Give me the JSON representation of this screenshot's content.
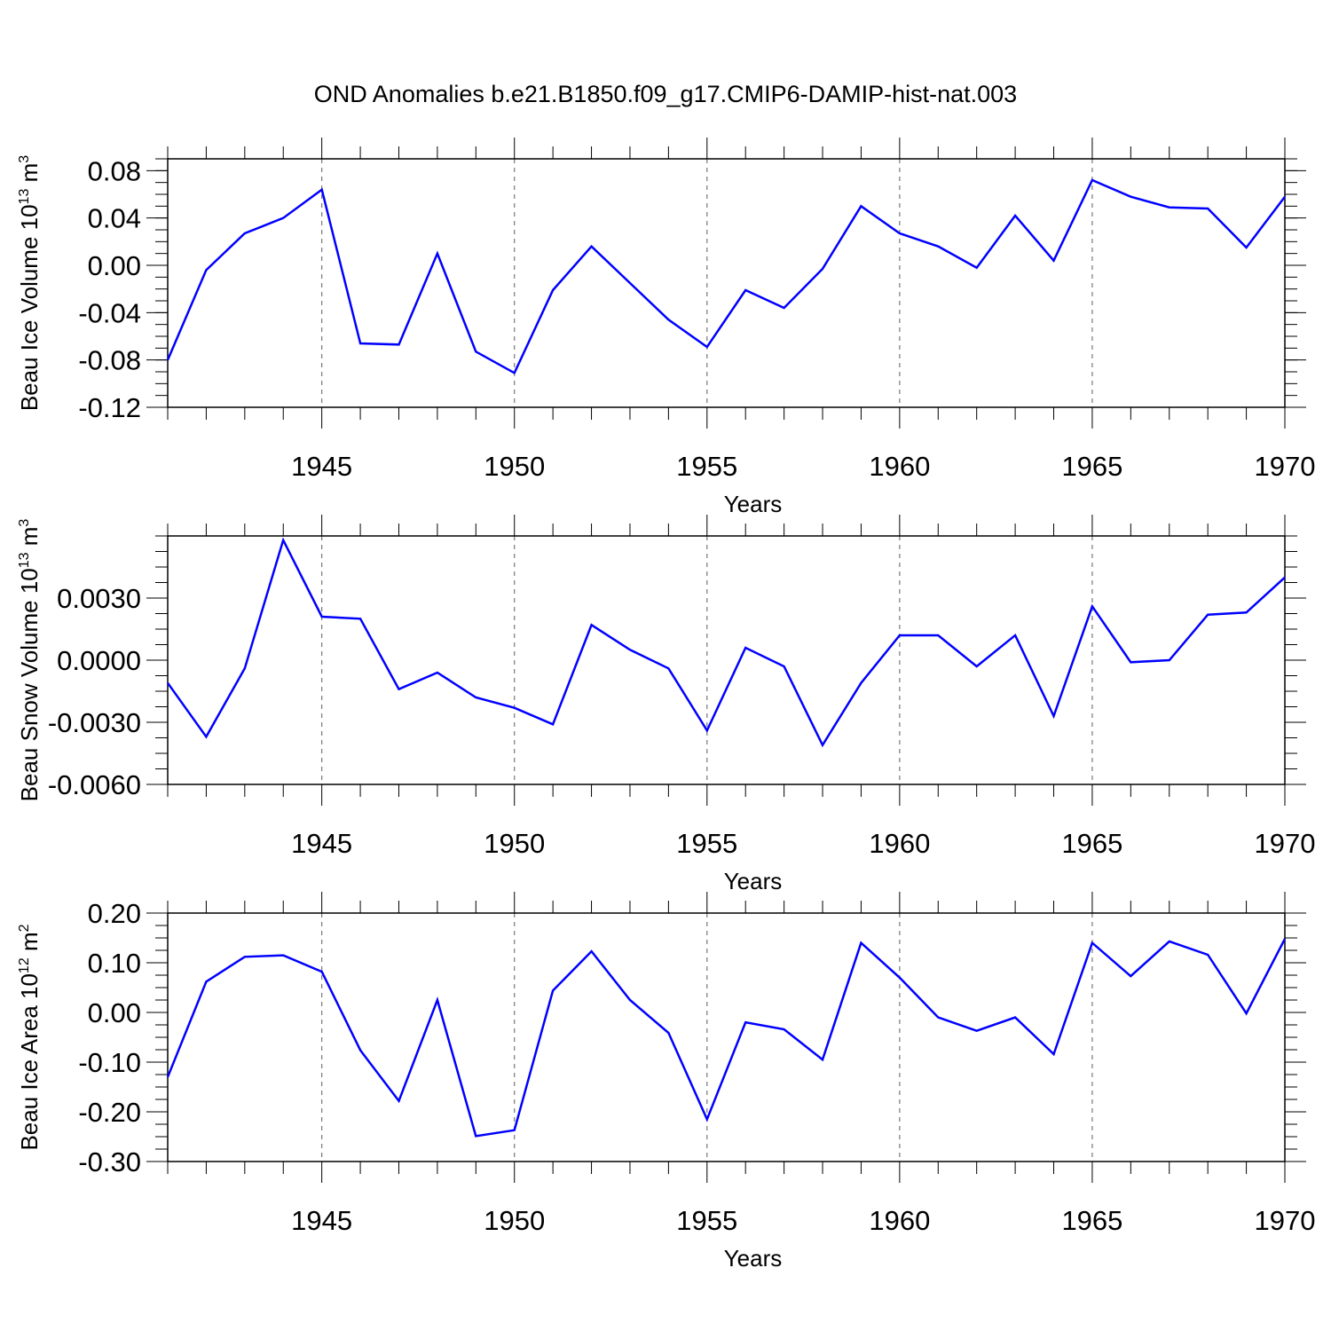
{
  "figure_title": "OND Anomalies b.e21.B1850.f09_g17.CMIP6-DAMIP-hist-nat.003",
  "series_color": "#0000ff",
  "chart_data": [
    {
      "type": "line",
      "title": "OND Anomalies b.e21.B1850.f09_g17.CMIP6-DAMIP-hist-nat.003",
      "xlabel": "Years",
      "ylabel": {
        "text": "Beau Ice Volume 10",
        "sup": "13",
        "unit": " m",
        "unit_sup": "3"
      },
      "xlim": [
        1941,
        1970
      ],
      "ylim": [
        -0.12,
        0.09
      ],
      "yticks": [
        -0.12,
        -0.08,
        -0.04,
        0.0,
        0.04,
        0.08
      ],
      "ytick_labels": [
        "-0.12",
        "-0.08",
        "-0.04",
        "0.00",
        "0.04",
        "0.08"
      ],
      "xticks": [
        1945,
        1950,
        1955,
        1960,
        1965,
        1970
      ],
      "xtick_labels": [
        "1945",
        "1950",
        "1955",
        "1960",
        "1965",
        "1970"
      ],
      "x": [
        1941,
        1942,
        1943,
        1944,
        1945,
        1946,
        1947,
        1948,
        1949,
        1950,
        1951,
        1952,
        1953,
        1954,
        1955,
        1956,
        1957,
        1958,
        1959,
        1960,
        1961,
        1962,
        1963,
        1964,
        1965,
        1966,
        1967,
        1968,
        1969,
        1970
      ],
      "y": [
        -0.08,
        -0.004,
        0.027,
        0.04,
        0.064,
        -0.066,
        -0.067,
        0.01,
        -0.073,
        -0.091,
        -0.021,
        0.016,
        -0.015,
        -0.046,
        -0.069,
        -0.021,
        -0.036,
        -0.003,
        0.05,
        0.027,
        0.016,
        -0.002,
        0.042,
        0.004,
        0.072,
        0.058,
        0.049,
        0.048,
        0.015,
        0.058
      ]
    },
    {
      "type": "line",
      "xlabel": "Years",
      "ylabel": {
        "text": "Beau Snow Volume 10",
        "sup": "13",
        "unit": " m",
        "unit_sup": "3"
      },
      "xlim": [
        1941,
        1970
      ],
      "ylim": [
        -0.006,
        0.006
      ],
      "yticks": [
        -0.006,
        -0.003,
        0.0,
        0.003
      ],
      "ytick_labels": [
        "-0.0060",
        "-0.0030",
        "0.0000",
        "0.0030"
      ],
      "xticks": [
        1945,
        1950,
        1955,
        1960,
        1965,
        1970
      ],
      "xtick_labels": [
        "1945",
        "1950",
        "1955",
        "1960",
        "1965",
        "1970"
      ],
      "x": [
        1941,
        1942,
        1943,
        1944,
        1945,
        1946,
        1947,
        1948,
        1949,
        1950,
        1951,
        1952,
        1953,
        1954,
        1955,
        1956,
        1957,
        1958,
        1959,
        1960,
        1961,
        1962,
        1963,
        1964,
        1965,
        1966,
        1967,
        1968,
        1969,
        1970
      ],
      "y": [
        -0.0011,
        -0.0037,
        -0.0004,
        0.0058,
        0.0021,
        0.002,
        -0.0014,
        -0.0006,
        -0.0018,
        -0.0023,
        -0.0031,
        0.0017,
        0.0005,
        -0.0004,
        -0.0034,
        0.0006,
        -0.0003,
        -0.0041,
        -0.0011,
        0.0012,
        0.0012,
        -0.0003,
        0.0012,
        -0.0027,
        0.0026,
        -0.0001,
        0.0,
        0.0022,
        0.0023,
        0.004
      ]
    },
    {
      "type": "line",
      "xlabel": "Years",
      "ylabel": {
        "text": "Beau Ice Area 10",
        "sup": "12",
        "unit": " m",
        "unit_sup": "2"
      },
      "xlim": [
        1941,
        1970
      ],
      "ylim": [
        -0.3,
        0.2
      ],
      "yticks": [
        -0.3,
        -0.2,
        -0.1,
        0.0,
        0.1,
        0.2
      ],
      "ytick_labels": [
        "-0.30",
        "-0.20",
        "-0.10",
        "0.00",
        "0.10",
        "0.20"
      ],
      "xticks": [
        1945,
        1950,
        1955,
        1960,
        1965,
        1970
      ],
      "xtick_labels": [
        "1945",
        "1950",
        "1955",
        "1960",
        "1965",
        "1970"
      ],
      "x": [
        1941,
        1942,
        1943,
        1944,
        1945,
        1946,
        1947,
        1948,
        1949,
        1950,
        1951,
        1952,
        1953,
        1954,
        1955,
        1956,
        1957,
        1958,
        1959,
        1960,
        1961,
        1962,
        1963,
        1964,
        1965,
        1966,
        1967,
        1968,
        1969,
        1970
      ],
      "y": [
        -0.13,
        0.062,
        0.112,
        0.115,
        0.082,
        -0.076,
        -0.178,
        0.025,
        -0.249,
        -0.237,
        0.044,
        0.123,
        0.025,
        -0.041,
        -0.215,
        -0.02,
        -0.034,
        -0.095,
        0.14,
        0.07,
        -0.01,
        -0.037,
        -0.01,
        -0.084,
        0.14,
        0.073,
        0.143,
        0.116,
        -0.002,
        0.148
      ]
    }
  ]
}
